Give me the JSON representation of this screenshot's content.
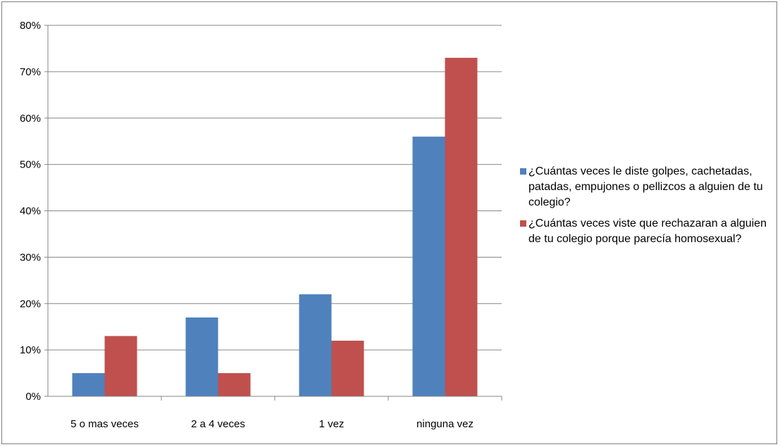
{
  "chart_data": {
    "type": "bar",
    "categories": [
      "5 o mas veces",
      "2 a 4 veces",
      "1 vez",
      "ninguna vez"
    ],
    "series": [
      {
        "name": "¿Cuántas  veces le diste golpes, cachetadas, patadas, empujones o pellizcos  a alguien de tu colegio?",
        "color": "#4F81BD",
        "values": [
          5,
          17,
          22,
          56
        ]
      },
      {
        "name": "¿Cuántas veces viste que rechazaran a alguien de tu colegio porque parecía homosexual?",
        "color": "#C0504D",
        "values": [
          13,
          5,
          12,
          73
        ]
      }
    ],
    "ylim": [
      0,
      80
    ],
    "yticks": [
      "0%",
      "10%",
      "20%",
      "30%",
      "40%",
      "50%",
      "60%",
      "70%",
      "80%"
    ],
    "grid": true,
    "legend_position": "right"
  }
}
